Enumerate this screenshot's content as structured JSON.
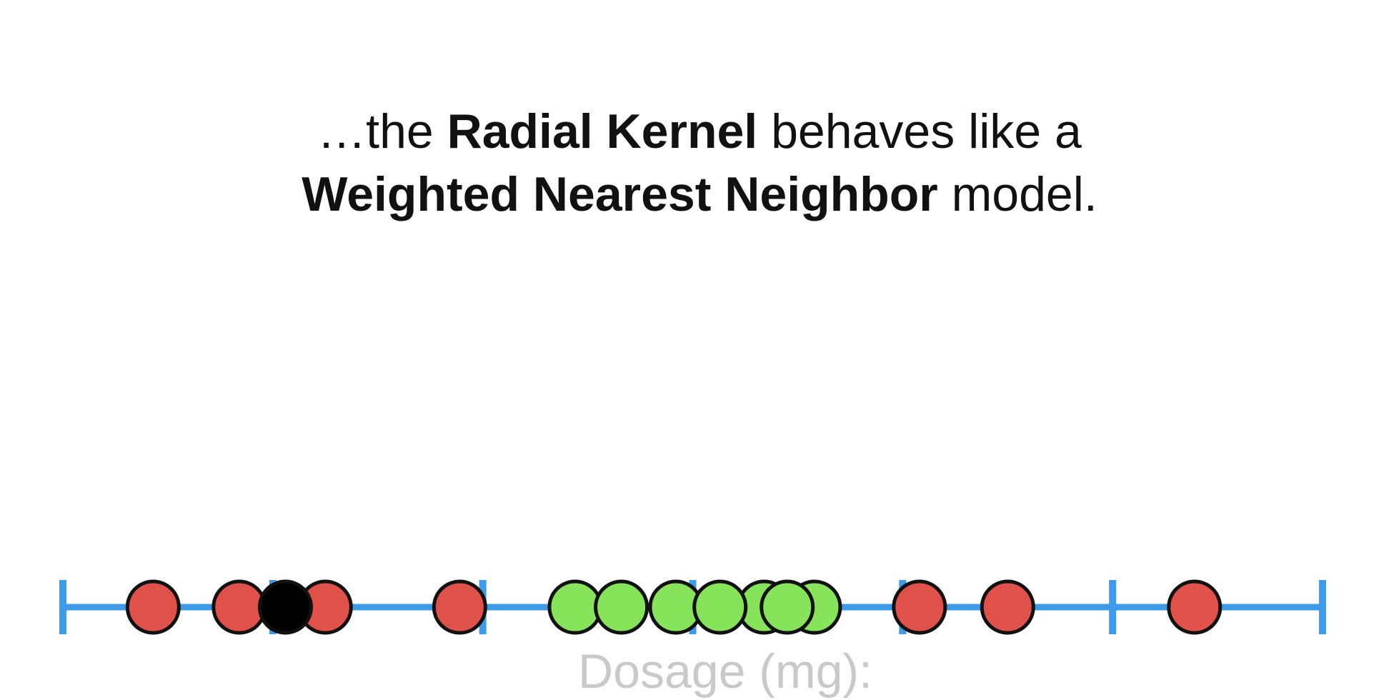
{
  "caption": {
    "line1": [
      {
        "text": "…the ",
        "bold": false
      },
      {
        "text": "Radial Kernel",
        "bold": true
      },
      {
        "text": " behaves like a",
        "bold": false
      }
    ],
    "line2": [
      {
        "text": "Weighted Nearest Neighbor",
        "bold": true
      },
      {
        "text": " model.",
        "bold": false
      }
    ]
  },
  "axis_label": "Dosage (mg):",
  "colors": {
    "axis": "#3d9be9",
    "red_point": "#e05249",
    "green_point": "#86e35a",
    "new_point": "#000000",
    "outline": "#111111"
  },
  "chart_data": {
    "type": "scatter",
    "xlim": [
      0,
      6
    ],
    "ticks": [
      0,
      1,
      2,
      3,
      4,
      5,
      6
    ],
    "points": [
      {
        "x": 0.43,
        "class": "red"
      },
      {
        "x": 0.84,
        "class": "red"
      },
      {
        "x": 1.25,
        "class": "red"
      },
      {
        "x": 1.89,
        "class": "red"
      },
      {
        "x": 2.44,
        "class": "green"
      },
      {
        "x": 2.66,
        "class": "green"
      },
      {
        "x": 2.92,
        "class": "green"
      },
      {
        "x": 3.34,
        "class": "green"
      },
      {
        "x": 3.58,
        "class": "green"
      },
      {
        "x": 3.13,
        "class": "green"
      },
      {
        "x": 3.45,
        "class": "green"
      },
      {
        "x": 4.08,
        "class": "red"
      },
      {
        "x": 4.5,
        "class": "red"
      },
      {
        "x": 5.39,
        "class": "red"
      },
      {
        "x": 1.06,
        "class": "new"
      }
    ]
  }
}
